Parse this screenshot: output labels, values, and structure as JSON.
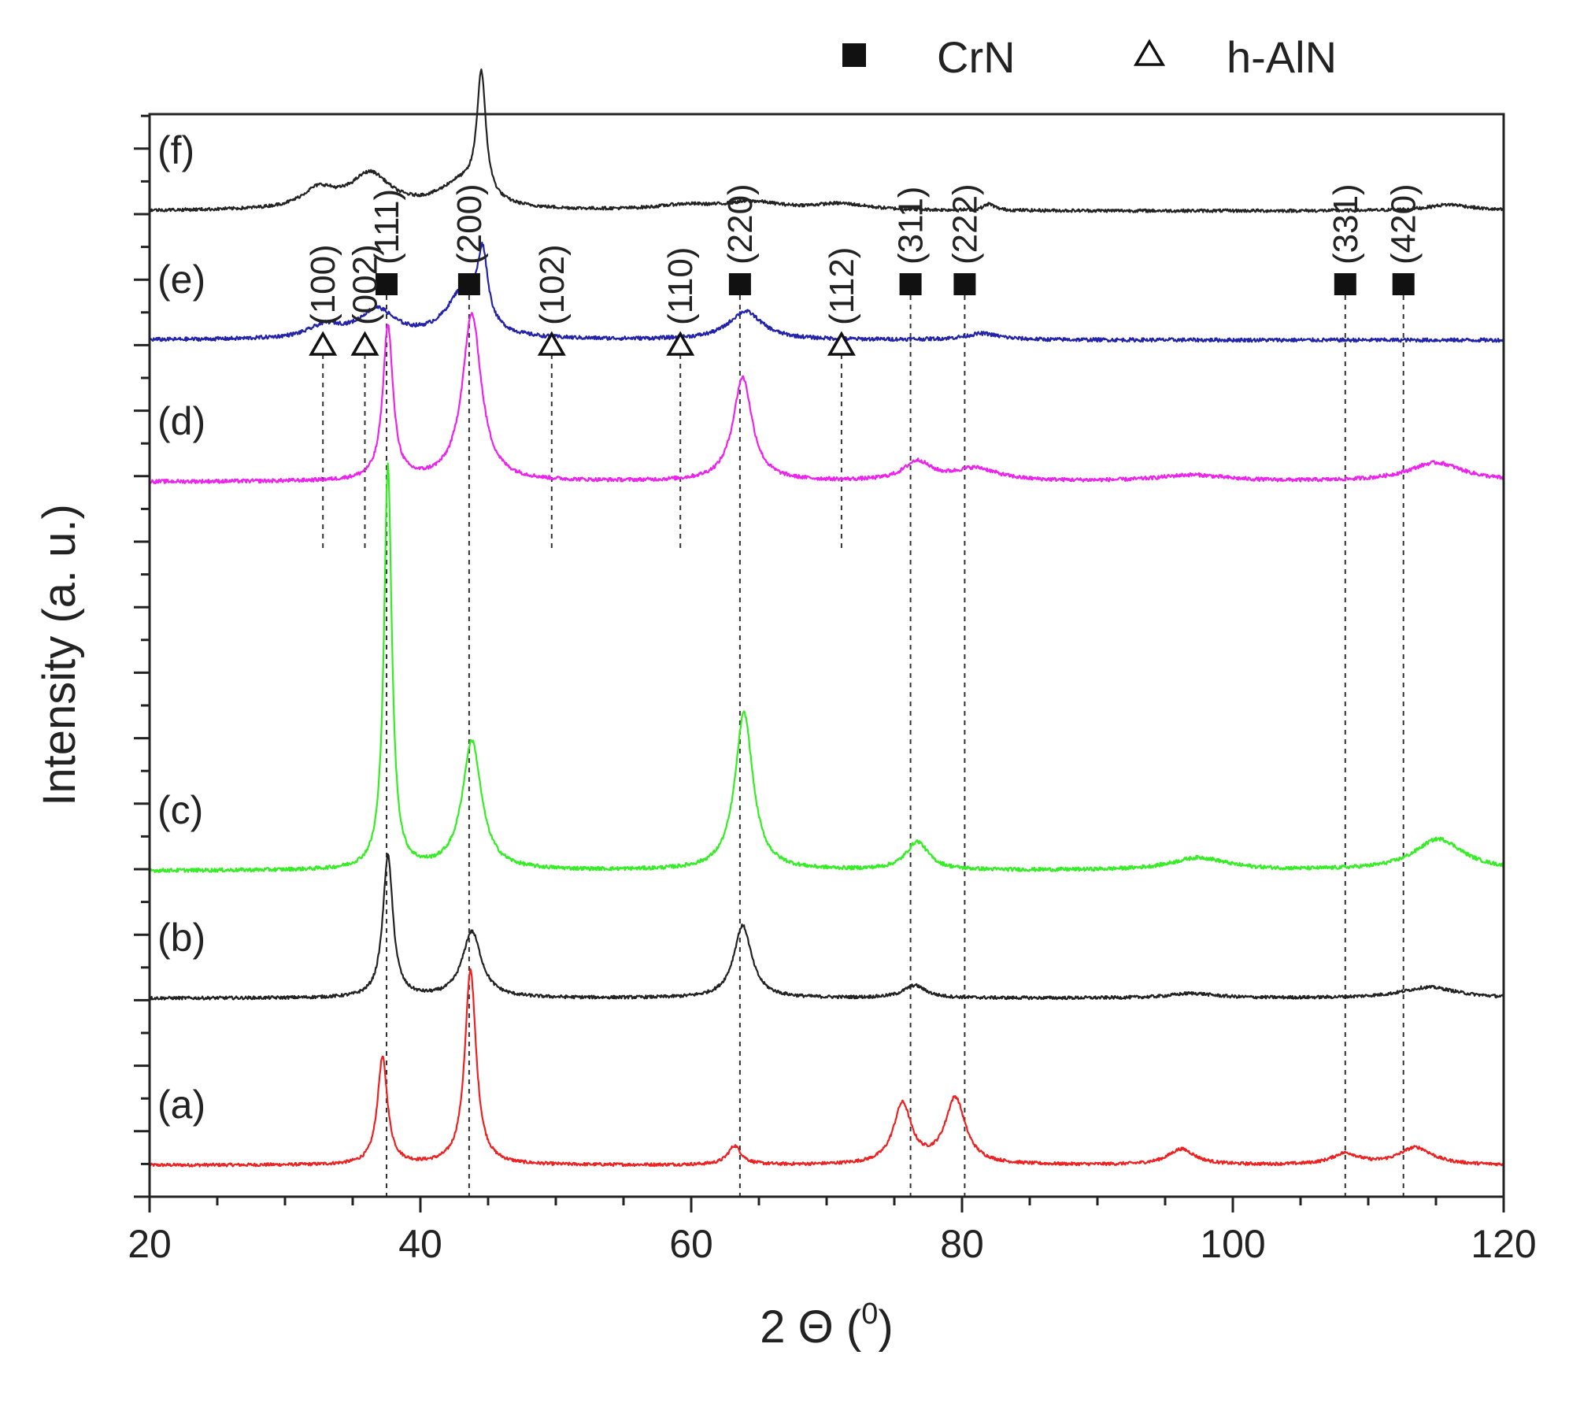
{
  "chart_data": {
    "type": "line",
    "title": "",
    "xlabel": "2 Θ (",
    "xlabel_superscript": "0",
    "xlabel_suffix": ")",
    "ylabel": "Intensity (a. u.)",
    "xlim": [
      20,
      120
    ],
    "x_ticks": [
      20,
      40,
      60,
      80,
      100,
      120
    ],
    "y_ticks_labeled": false,
    "grid": false,
    "legend": {
      "placement": "top-right",
      "entries": [
        {
          "label": "CrN",
          "marker": "filled-square"
        },
        {
          "label": "h-AlN",
          "marker": "open-triangle"
        }
      ]
    },
    "series": [
      {
        "name": "(a)",
        "color": "#ee2020",
        "baseline": 0.0,
        "noise": 0.05,
        "peaks": [
          [
            37.2,
            3.4,
            0.45
          ],
          [
            43.7,
            6.2,
            0.5
          ],
          [
            63.2,
            0.6,
            0.6
          ],
          [
            75.6,
            1.9,
            0.8
          ],
          [
            79.5,
            2.1,
            0.9
          ],
          [
            96.2,
            0.5,
            1.2
          ],
          [
            108.3,
            0.35,
            1.2
          ],
          [
            113.5,
            0.55,
            1.5
          ]
        ]
      },
      {
        "name": "(b)",
        "color": "#222222",
        "baseline": 5.3,
        "noise": 0.05,
        "peaks": [
          [
            37.6,
            4.5,
            0.45
          ],
          [
            43.8,
            2.1,
            0.85
          ],
          [
            63.8,
            2.3,
            0.8
          ],
          [
            76.5,
            0.4,
            1.0
          ],
          [
            97.0,
            0.15,
            2.0
          ],
          [
            114.5,
            0.35,
            2.5
          ]
        ]
      },
      {
        "name": "(c)",
        "color": "#33ee22",
        "baseline": 9.35,
        "noise": 0.06,
        "peaks": [
          [
            37.6,
            12.8,
            0.35
          ],
          [
            43.8,
            4.1,
            0.85
          ],
          [
            63.9,
            5.0,
            0.8
          ],
          [
            76.7,
            0.9,
            1.0
          ],
          [
            97.5,
            0.4,
            2.5
          ],
          [
            115.2,
            1.0,
            2.2
          ]
        ]
      },
      {
        "name": "(d)",
        "color": "#ee22ee",
        "baseline": 21.7,
        "noise": 0.06,
        "peaks": [
          [
            37.6,
            4.9,
            0.45
          ],
          [
            43.8,
            5.3,
            0.85
          ],
          [
            63.8,
            3.3,
            0.85
          ],
          [
            76.7,
            0.6,
            1.2
          ],
          [
            81.0,
            0.4,
            2.0
          ],
          [
            97.0,
            0.2,
            3.0
          ],
          [
            115.0,
            0.6,
            2.5
          ]
        ]
      },
      {
        "name": "(e)",
        "color": "#2222aa",
        "baseline": 26.2,
        "noise": 0.06,
        "peaks": [
          [
            33.0,
            0.4,
            1.5
          ],
          [
            36.8,
            0.9,
            1.6
          ],
          [
            43.2,
            1.5,
            1.5
          ],
          [
            44.6,
            2.2,
            0.45
          ],
          [
            64.0,
            0.9,
            1.5
          ],
          [
            81.5,
            0.2,
            1.5
          ]
        ]
      },
      {
        "name": "(f)",
        "color": "#222222",
        "baseline": 30.3,
        "noise": 0.05,
        "peaks": [
          [
            32.5,
            0.6,
            1.5
          ],
          [
            36.3,
            1.1,
            1.8
          ],
          [
            43.0,
            0.8,
            2.0
          ],
          [
            44.5,
            3.9,
            0.4
          ],
          [
            59.5,
            0.15,
            2.5
          ],
          [
            64.5,
            0.25,
            2.5
          ],
          [
            71.0,
            0.2,
            2.5
          ],
          [
            82.0,
            0.2,
            0.5
          ],
          [
            116.0,
            0.2,
            2.0
          ]
        ]
      }
    ],
    "reflections": [
      {
        "phase": "h-AlN",
        "hkl": "(100)",
        "two_theta": 32.8
      },
      {
        "phase": "h-AlN",
        "hkl": "(002)",
        "two_theta": 35.9
      },
      {
        "phase": "CrN",
        "hkl": "(111)",
        "two_theta": 37.5
      },
      {
        "phase": "CrN",
        "hkl": "(200)",
        "two_theta": 43.6
      },
      {
        "phase": "h-AlN",
        "hkl": "(102)",
        "two_theta": 49.7
      },
      {
        "phase": "h-AlN",
        "hkl": "(110)",
        "two_theta": 59.2
      },
      {
        "phase": "CrN",
        "hkl": "(220)",
        "two_theta": 63.6
      },
      {
        "phase": "h-AlN",
        "hkl": "(112)",
        "two_theta": 71.1
      },
      {
        "phase": "CrN",
        "hkl": "(311)",
        "two_theta": 76.2
      },
      {
        "phase": "CrN",
        "hkl": "(222)",
        "two_theta": 80.2
      },
      {
        "phase": "CrN",
        "hkl": "(331)",
        "two_theta": 108.3
      },
      {
        "phase": "CrN",
        "hkl": "(420)",
        "two_theta": 112.6
      }
    ]
  }
}
